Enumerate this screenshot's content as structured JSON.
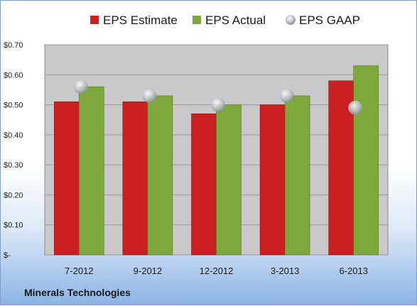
{
  "company": "Minerals Technologies",
  "colors": {
    "estimate": "#cc1f1f",
    "actual": "#7fa83c",
    "gaap": "#b8bcc4",
    "plot_bg": "#c9c9c9",
    "grid": "#9a9a9a"
  },
  "chart_data": {
    "type": "bar",
    "categories": [
      "7-2012",
      "9-2012",
      "12-2012",
      "3-2013",
      "6-2013"
    ],
    "series": [
      {
        "name": "EPS Estimate",
        "kind": "bar",
        "values": [
          0.51,
          0.51,
          0.47,
          0.5,
          0.58
        ]
      },
      {
        "name": "EPS Actual",
        "kind": "bar",
        "values": [
          0.56,
          0.53,
          0.5,
          0.53,
          0.63
        ]
      },
      {
        "name": "EPS GAAP",
        "kind": "marker",
        "values": [
          0.56,
          0.53,
          0.5,
          0.53,
          0.49
        ]
      }
    ],
    "ylim": [
      0,
      0.7
    ],
    "yticks": [
      0,
      0.1,
      0.2,
      0.3,
      0.4,
      0.5,
      0.6,
      0.7
    ],
    "ytick_labels": [
      "$-",
      "$0.10",
      "$0.20",
      "$0.30",
      "$0.40",
      "$0.50",
      "$0.60",
      "$0.70"
    ],
    "grid": true,
    "legend": "top"
  }
}
